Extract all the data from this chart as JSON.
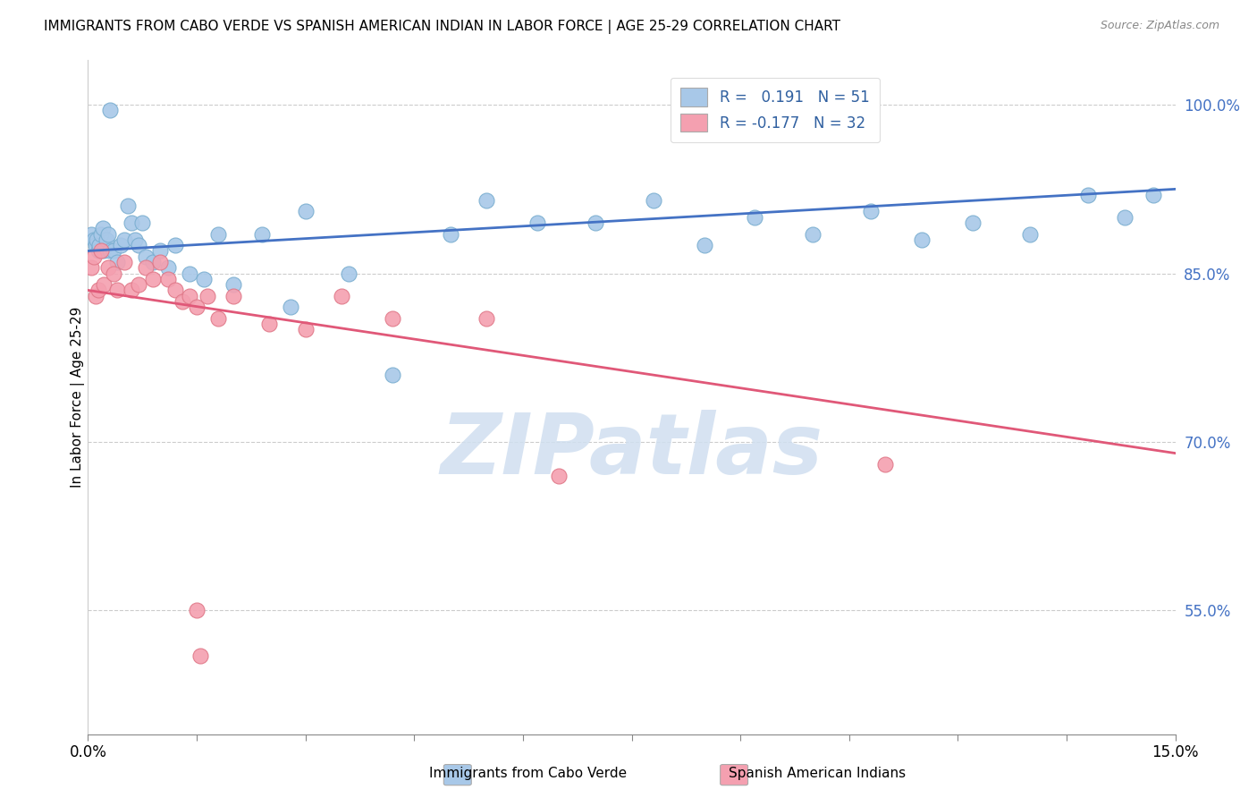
{
  "title": "IMMIGRANTS FROM CABO VERDE VS SPANISH AMERICAN INDIAN IN LABOR FORCE | AGE 25-29 CORRELATION CHART",
  "source": "Source: ZipAtlas.com",
  "ylabel": "In Labor Force | Age 25-29",
  "y_ticks": [
    55.0,
    70.0,
    85.0,
    100.0
  ],
  "y_tick_labels": [
    "55.0%",
    "70.0%",
    "85.0%",
    "100.0%"
  ],
  "x_range": [
    0.0,
    15.0
  ],
  "y_range": [
    44.0,
    104.0
  ],
  "blue_color": "#a8c8e8",
  "pink_color": "#f4a0b0",
  "blue_line_color": "#4472c4",
  "pink_line_color": "#e05878",
  "blue_edge_color": "#7aaed0",
  "pink_edge_color": "#e07888",
  "blue_x": [
    0.05,
    0.08,
    0.1,
    0.12,
    0.14,
    0.16,
    0.18,
    0.2,
    0.22,
    0.25,
    0.28,
    0.3,
    0.35,
    0.4,
    0.45,
    0.5,
    0.55,
    0.6,
    0.65,
    0.7,
    0.8,
    0.9,
    1.0,
    1.1,
    1.2,
    1.4,
    1.6,
    1.8,
    2.0,
    2.4,
    3.0,
    3.6,
    4.2,
    5.0,
    5.5,
    6.2,
    7.0,
    7.8,
    8.5,
    9.2,
    10.0,
    10.8,
    11.5,
    12.2,
    13.0,
    13.8,
    14.3,
    14.7,
    2.8,
    0.3,
    0.75
  ],
  "blue_y": [
    88.5,
    88.0,
    87.5,
    88.0,
    87.0,
    87.5,
    88.5,
    89.0,
    87.0,
    88.0,
    88.5,
    87.0,
    87.0,
    86.0,
    87.5,
    88.0,
    91.0,
    89.5,
    88.0,
    87.5,
    86.5,
    86.0,
    87.0,
    85.5,
    87.5,
    85.0,
    84.5,
    88.5,
    84.0,
    88.5,
    90.5,
    85.0,
    76.0,
    88.5,
    91.5,
    89.5,
    89.5,
    91.5,
    87.5,
    90.0,
    88.5,
    90.5,
    88.0,
    89.5,
    88.5,
    92.0,
    90.0,
    92.0,
    82.0,
    99.5,
    89.5
  ],
  "pink_x": [
    0.05,
    0.08,
    0.1,
    0.14,
    0.18,
    0.22,
    0.28,
    0.35,
    0.4,
    0.5,
    0.6,
    0.7,
    0.8,
    0.9,
    1.0,
    1.1,
    1.2,
    1.3,
    1.4,
    1.5,
    1.65,
    1.8,
    2.0,
    2.5,
    3.0,
    3.5,
    4.2,
    5.5,
    6.5,
    11.0,
    1.5,
    1.55
  ],
  "pink_y": [
    85.5,
    86.5,
    83.0,
    83.5,
    87.0,
    84.0,
    85.5,
    85.0,
    83.5,
    86.0,
    83.5,
    84.0,
    85.5,
    84.5,
    86.0,
    84.5,
    83.5,
    82.5,
    83.0,
    82.0,
    83.0,
    81.0,
    83.0,
    80.5,
    80.0,
    83.0,
    81.0,
    81.0,
    67.0,
    68.0,
    55.0,
    51.0
  ],
  "blue_line_x": [
    0.0,
    15.0
  ],
  "blue_line_y": [
    87.0,
    92.5
  ],
  "pink_line_x": [
    0.0,
    15.0
  ],
  "pink_line_y": [
    83.5,
    69.0
  ],
  "watermark_text": "ZIPatlas",
  "watermark_color": "#d0dff0",
  "n_xticks": 11
}
